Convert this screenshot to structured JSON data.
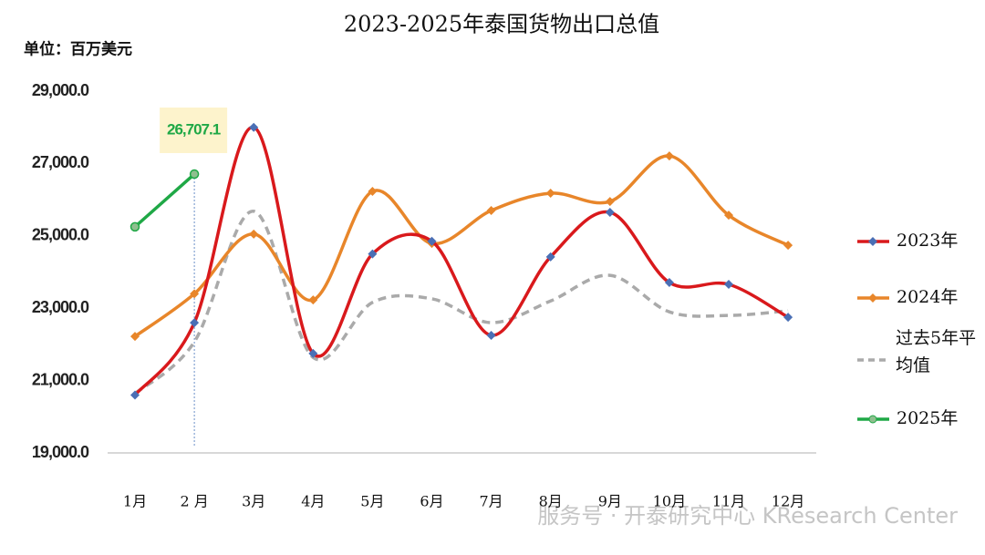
{
  "chart_data": {
    "type": "line",
    "title": "2023-2025年泰国货物出口总值",
    "y_label": "单位：百万美元",
    "categories": [
      "1月",
      "2 月",
      "3月",
      "4月",
      "5月",
      "6月",
      "7月",
      "8月",
      "9月",
      "10月",
      "11月",
      "12月"
    ],
    "ylim": [
      19000,
      29000
    ],
    "yticks": [
      {
        "value": 19000,
        "label": "19,000.0"
      },
      {
        "value": 21000,
        "label": "21,000.0"
      },
      {
        "value": 23000,
        "label": "23,000.0"
      },
      {
        "value": 25000,
        "label": "25,000.0"
      },
      {
        "value": 27000,
        "label": "27,000.0"
      },
      {
        "value": 29000,
        "label": "29,000.0"
      }
    ],
    "legend": "right",
    "series": [
      {
        "name": "2023年",
        "color": "#d9191c",
        "marker_color": "#4a6fb5",
        "values": [
          20600,
          22600,
          28000,
          21750,
          24500,
          24850,
          22250,
          24420,
          25650,
          23710,
          23660,
          22750
        ]
      },
      {
        "name": "2024年",
        "color": "#e8862a",
        "marker_color": "#e8862a",
        "values": [
          22220,
          23400,
          25050,
          23230,
          26230,
          24790,
          25700,
          26180,
          25950,
          27210,
          25570,
          24740
        ]
      },
      {
        "name": "过去5年平均值",
        "color": "#aaaaaa",
        "dashed": true,
        "values": [
          20640,
          22070,
          25680,
          21640,
          23160,
          23260,
          22600,
          23200,
          23910,
          22900,
          22800,
          22930
        ]
      },
      {
        "name": "2025年",
        "color": "#1fa846",
        "marker_color": "#8fbf8f",
        "values": [
          25250,
          26707.1,
          null,
          null,
          null,
          null,
          null,
          null,
          null,
          null,
          null,
          null
        ],
        "value_labels": [
          null,
          "26,707.1",
          null,
          null,
          null,
          null,
          null,
          null,
          null,
          null,
          null,
          null
        ]
      }
    ]
  },
  "watermark": "服务号 · 开泰研究中心 KResearch Center"
}
